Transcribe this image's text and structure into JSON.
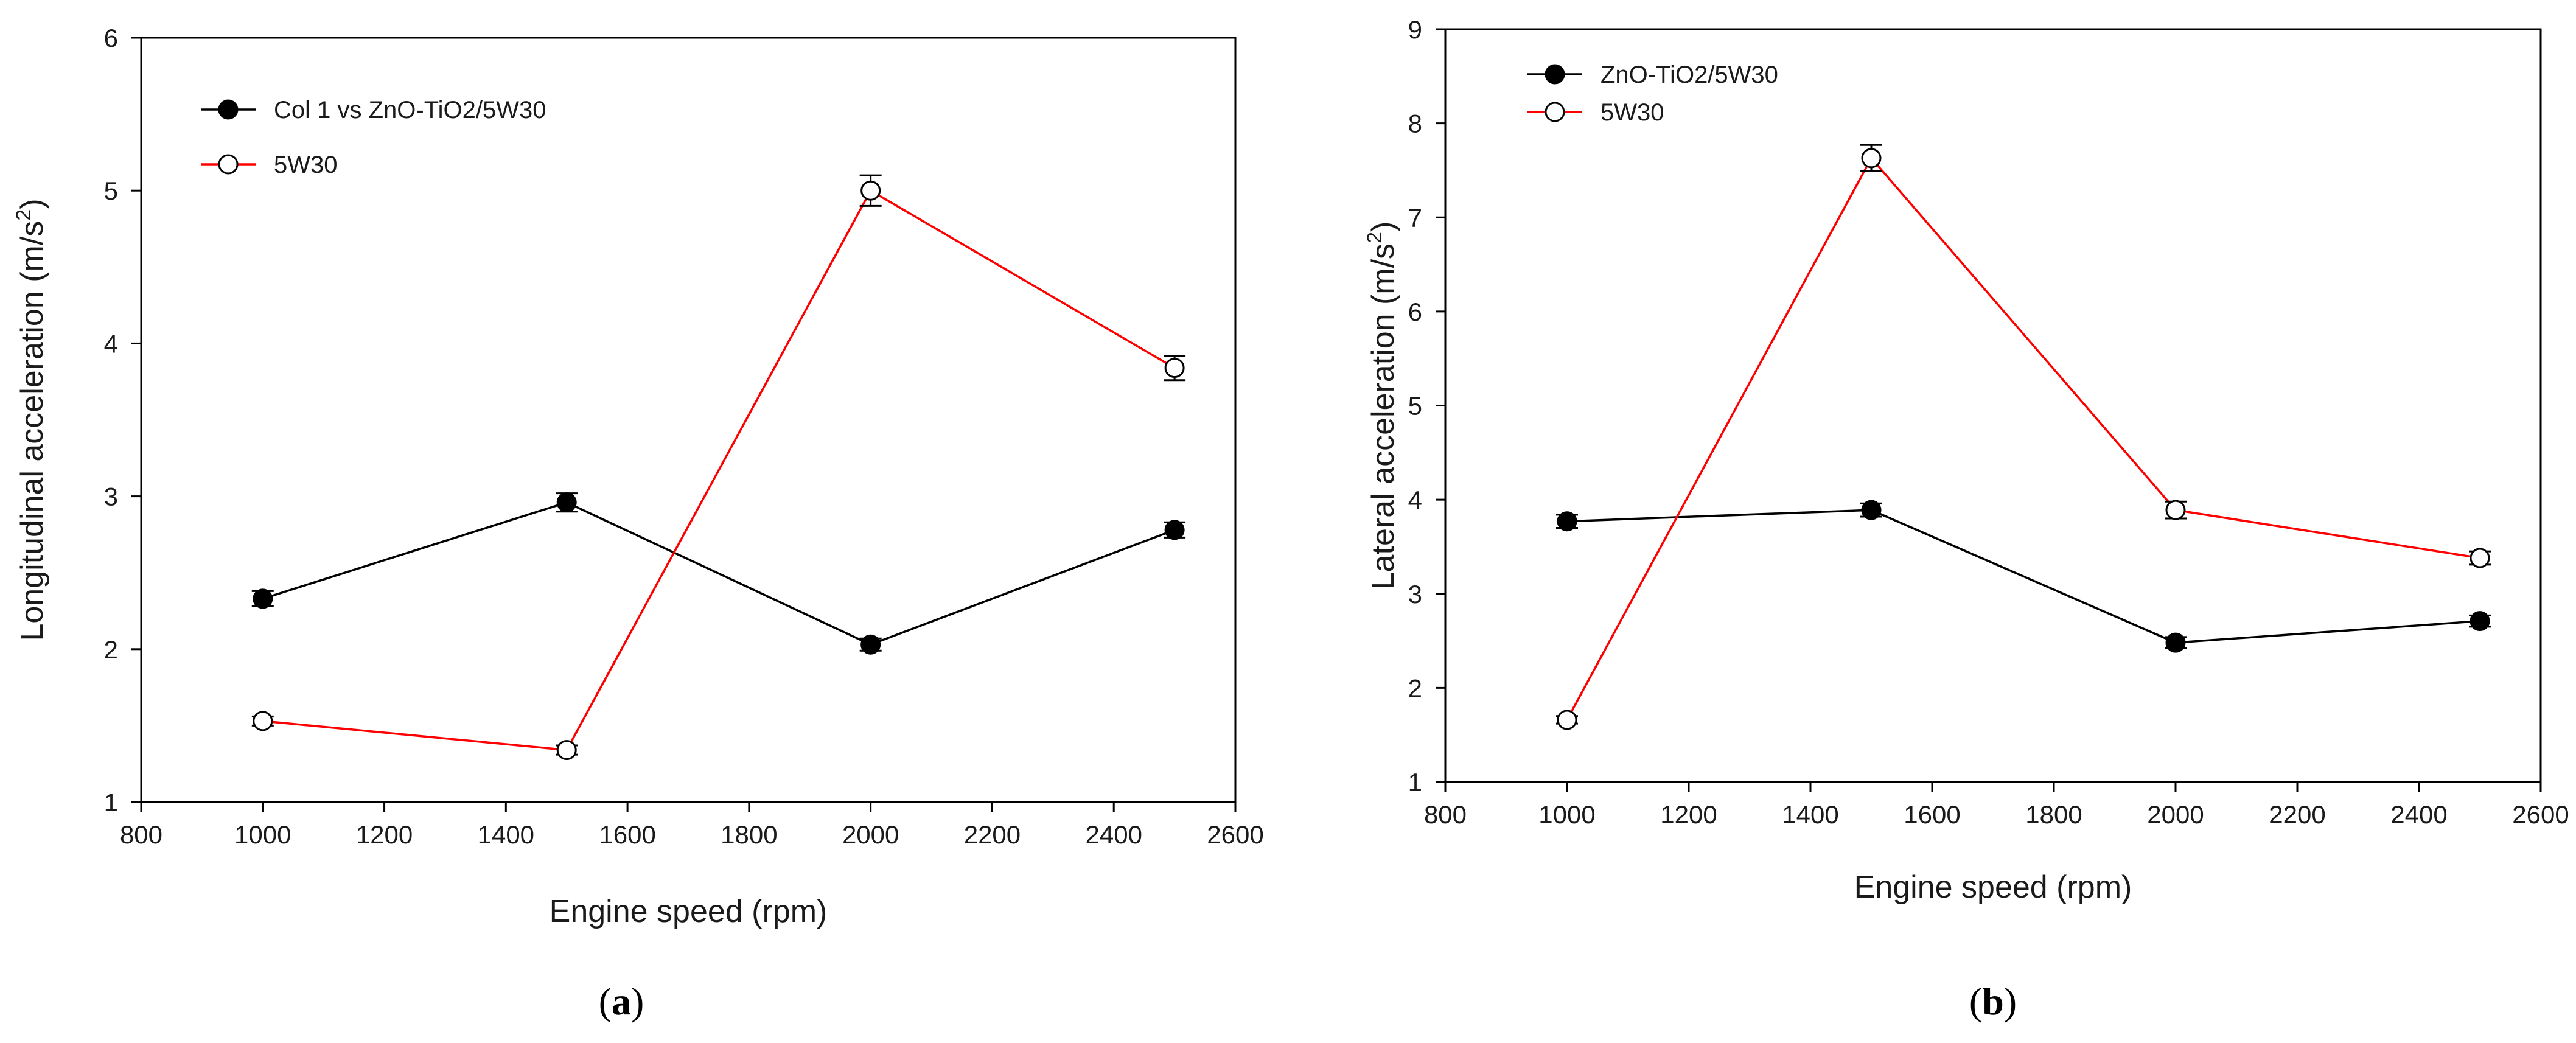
{
  "colors": {
    "series_1": "#000000",
    "series_2": "#ff0000",
    "axis": "#000000"
  },
  "chart_data": [
    {
      "type": "line",
      "panel_label": "a",
      "title": "",
      "xlabel": "Engine speed (rpm)",
      "ylabel": "Longitudinal acceleration (m/s",
      "ylabel_sup": "2",
      "ylabel_end": ")",
      "xlim": [
        800,
        2600
      ],
      "ylim": [
        1,
        6
      ],
      "xticks": [
        "800",
        "1000",
        "1200",
        "1400",
        "1600",
        "1800",
        "2000",
        "2200",
        "2400",
        "2600"
      ],
      "yticks": [
        "1",
        "2",
        "3",
        "4",
        "5",
        "6"
      ],
      "x": [
        1000,
        1500,
        2000,
        2500
      ],
      "legend_position": "top-left",
      "series": [
        {
          "name": "Col 1 vs ZnO-TiO2/5W30",
          "marker": "filled-circle",
          "color": "#000000",
          "values": [
            2.33,
            2.96,
            2.03,
            2.78
          ],
          "errors": [
            0.05,
            0.06,
            0.04,
            0.05
          ]
        },
        {
          "name": "5W30",
          "marker": "open-circle",
          "color": "#ff0000",
          "values": [
            1.53,
            1.34,
            5.0,
            3.84
          ],
          "errors": [
            0.03,
            0.03,
            0.1,
            0.08
          ]
        }
      ]
    },
    {
      "type": "line",
      "panel_label": "b",
      "title": "",
      "xlabel": "Engine speed (rpm)",
      "ylabel": "Lateral acceleration (m/s",
      "ylabel_sup": "2",
      "ylabel_end": ")",
      "xlim": [
        800,
        2600
      ],
      "ylim": [
        1,
        9
      ],
      "xticks": [
        "800",
        "1000",
        "1200",
        "1400",
        "1600",
        "1800",
        "2000",
        "2200",
        "2400",
        "2600"
      ],
      "yticks": [
        "1",
        "2",
        "3",
        "4",
        "5",
        "6",
        "7",
        "8",
        "9"
      ],
      "x": [
        1000,
        1500,
        2000,
        2500
      ],
      "legend_position": "top-left",
      "series": [
        {
          "name": "ZnO-TiO2/5W30",
          "marker": "filled-circle",
          "color": "#000000",
          "values": [
            3.77,
            3.89,
            2.48,
            2.71
          ],
          "errors": [
            0.07,
            0.07,
            0.06,
            0.06
          ]
        },
        {
          "name": "5W30",
          "marker": "open-circle",
          "color": "#ff0000",
          "values": [
            1.66,
            7.63,
            3.89,
            3.38
          ],
          "errors": [
            0.04,
            0.14,
            0.09,
            0.07
          ]
        }
      ]
    }
  ]
}
